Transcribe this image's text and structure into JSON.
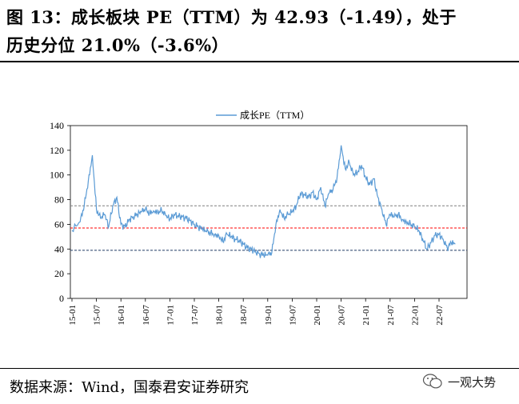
{
  "title": {
    "line1": "图 13：成长板块 PE（TTM）为 42.93（-1.49），处于",
    "line2": "历史分位 21.0%（-3.6%）"
  },
  "source": "数据来源：Wind，国泰君安证券研究",
  "watermark": "一观大势",
  "colors": {
    "series": "#5b9bd5",
    "upper_band": "#7f7f7f",
    "median": "#ff0000",
    "lower_band": "#1f3864"
  },
  "chart_data": {
    "type": "line",
    "title": "",
    "xlabel": "",
    "ylabel": "",
    "ylim": [
      0,
      140
    ],
    "yticks": [
      0,
      20,
      40,
      60,
      80,
      100,
      120,
      140
    ],
    "xticks": [
      "15-01",
      "15-07",
      "16-01",
      "16-07",
      "17-01",
      "17-07",
      "18-01",
      "18-07",
      "19-01",
      "19-07",
      "20-01",
      "20-07",
      "21-01",
      "21-07",
      "22-01",
      "22-07"
    ],
    "legend": "top-center",
    "grid": false,
    "series": [
      {
        "name": "成长PE（TTM）",
        "x": [
          "15-01",
          "15-03",
          "15-04",
          "15-05",
          "15-06",
          "15-07",
          "15-08",
          "15-09",
          "15-10",
          "15-11",
          "15-12",
          "16-01",
          "16-02",
          "16-03",
          "16-04",
          "16-05",
          "16-06",
          "16-07",
          "16-08",
          "16-09",
          "16-10",
          "16-11",
          "16-12",
          "17-01",
          "17-02",
          "17-03",
          "17-04",
          "17-05",
          "17-06",
          "17-07",
          "17-08",
          "17-09",
          "17-10",
          "17-11",
          "17-12",
          "18-01",
          "18-02",
          "18-03",
          "18-04",
          "18-05",
          "18-06",
          "18-07",
          "18-08",
          "18-09",
          "18-10",
          "18-11",
          "18-12",
          "19-01",
          "19-02",
          "19-03",
          "19-04",
          "19-05",
          "19-06",
          "19-07",
          "19-08",
          "19-09",
          "19-10",
          "19-11",
          "19-12",
          "20-01",
          "20-02",
          "20-03",
          "20-04",
          "20-05",
          "20-06",
          "20-07",
          "20-08",
          "20-09",
          "20-10",
          "20-11",
          "20-12",
          "21-01",
          "21-02",
          "21-03",
          "21-04",
          "21-05",
          "21-06",
          "21-07",
          "21-08",
          "21-09",
          "21-10",
          "21-11",
          "21-12",
          "22-01",
          "22-02",
          "22-03",
          "22-04",
          "22-05",
          "22-06",
          "22-07",
          "22-08",
          "22-09",
          "22-10",
          "22-11"
        ],
        "values": [
          55,
          62,
          75,
          95,
          116,
          72,
          65,
          68,
          58,
          75,
          82,
          60,
          58,
          64,
          66,
          68,
          70,
          72,
          69,
          71,
          70,
          71,
          67,
          64,
          68,
          67,
          66,
          65,
          63,
          60,
          58,
          56,
          54,
          53,
          52,
          51,
          46,
          52,
          50,
          48,
          47,
          44,
          41,
          40,
          38,
          36,
          35,
          35,
          37,
          60,
          72,
          65,
          68,
          70,
          75,
          85,
          84,
          82,
          86,
          80,
          90,
          75,
          85,
          88,
          98,
          124,
          105,
          110,
          100,
          102,
          108,
          98,
          92,
          97,
          82,
          72,
          60,
          68,
          66,
          68,
          64,
          62,
          60,
          58,
          55,
          48,
          40,
          45,
          51,
          52,
          48,
          41,
          45,
          44
        ]
      }
    ],
    "reference_lines": [
      {
        "label": "",
        "value": 75
      },
      {
        "label": "",
        "value": 57
      },
      {
        "label": "",
        "value": 39
      }
    ]
  }
}
